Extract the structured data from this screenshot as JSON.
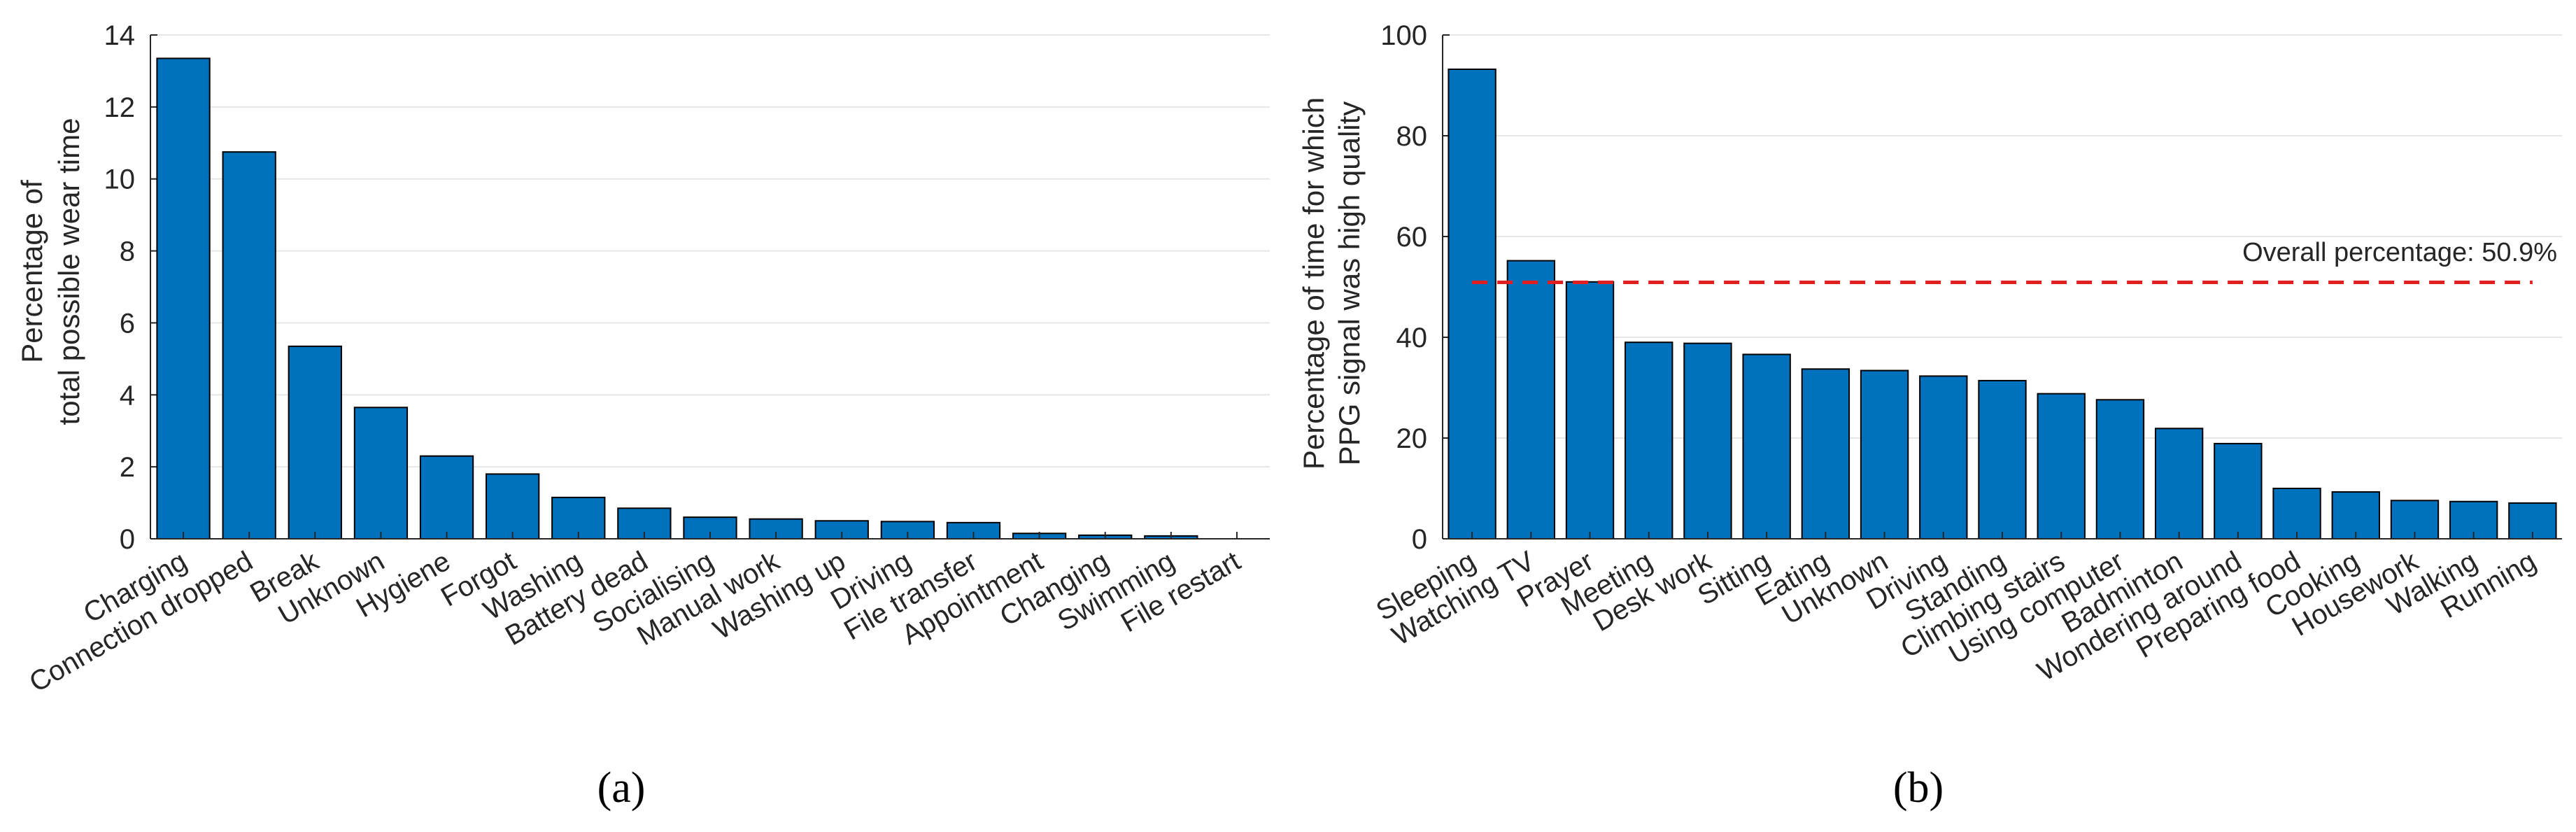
{
  "colors": {
    "bar": "#0072BD",
    "reference_line": "#E02020",
    "grid": "#e6e6e6",
    "axis": "#262626"
  },
  "panel_labels": [
    "(a)",
    "(b)"
  ],
  "chart_data": [
    {
      "type": "bar",
      "panel": "(a)",
      "title": "",
      "xlabel": "",
      "ylabel_lines": [
        "Percentage of",
        "total possible wear time"
      ],
      "ylim": [
        0,
        14
      ],
      "yticks": [
        0,
        2,
        4,
        6,
        8,
        10,
        12,
        14
      ],
      "grid": "horizontal",
      "categories": [
        "Charging",
        "Connection dropped",
        "Break",
        "Unknown",
        "Hygiene",
        "Forgot",
        "Washing",
        "Battery dead",
        "Socialising",
        "Manual work",
        "Washing up",
        "Driving",
        "File transfer",
        "Appointment",
        "Changing",
        "Swimming",
        "File restart"
      ],
      "values": [
        13.35,
        10.75,
        5.35,
        3.65,
        2.3,
        1.8,
        1.15,
        0.85,
        0.6,
        0.55,
        0.5,
        0.48,
        0.45,
        0.15,
        0.1,
        0.08,
        0.0
      ]
    },
    {
      "type": "bar",
      "panel": "(b)",
      "title": "",
      "xlabel": "",
      "ylabel_lines": [
        "Percentage of time for which",
        "PPG signal was high quality"
      ],
      "ylim": [
        0,
        100
      ],
      "yticks": [
        0,
        20,
        40,
        60,
        80,
        100
      ],
      "grid": "horizontal",
      "categories": [
        "Sleeping",
        "Watching TV",
        "Prayer",
        "Meeting",
        "Desk work",
        "Sitting",
        "Eating",
        "Unknown",
        "Driving",
        "Standing",
        "Climbing stairs",
        "Using computer",
        "Badminton",
        "Wondering around",
        "Preparing food",
        "Cooking",
        "Housework",
        "Walking",
        "Running"
      ],
      "values": [
        93.2,
        55.2,
        51.0,
        39.0,
        38.8,
        36.6,
        33.7,
        33.4,
        32.3,
        31.4,
        28.8,
        27.6,
        21.9,
        18.9,
        10.0,
        9.3,
        7.6,
        7.4,
        7.1
      ],
      "reference_line": {
        "value": 50.9,
        "label": "Overall percentage: 50.9%",
        "style": "dashed"
      }
    }
  ]
}
